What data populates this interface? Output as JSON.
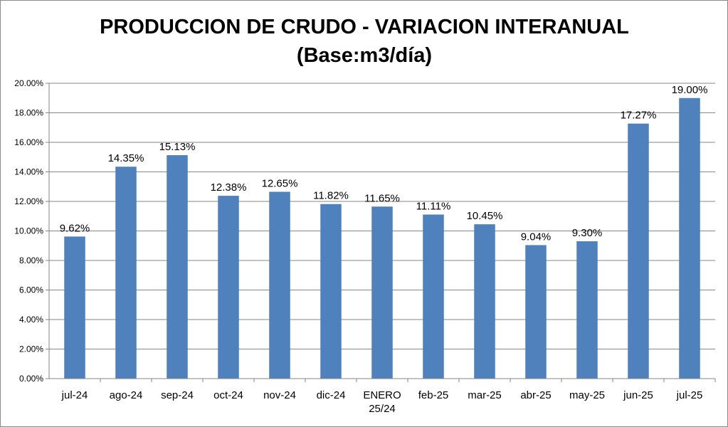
{
  "chart_data": {
    "type": "bar",
    "title": "PRODUCCION DE CRUDO - VARIACION INTERANUAL",
    "subtitle": "(Base:m3/día)",
    "categories": [
      "jul-24",
      "ago-24",
      "sep-24",
      "oct-24",
      "nov-24",
      "dic-24",
      [
        "ENERO",
        "25/24"
      ],
      "feb-25",
      "mar-25",
      "abr-25",
      "may-25",
      "jun-25",
      "jul-25"
    ],
    "values": [
      9.62,
      14.35,
      15.13,
      12.38,
      12.65,
      11.82,
      11.65,
      11.11,
      10.45,
      9.04,
      9.3,
      17.27,
      19.0
    ],
    "data_labels": [
      "9.62%",
      "14.35%",
      "15.13%",
      "12.38%",
      "12.65%",
      "11.82%",
      "11.65%",
      "11.11%",
      "10.45%",
      "9.04%",
      "9.30%",
      "17.27%",
      "19.00%"
    ],
    "y_ticks": [
      "0.00%",
      "2.00%",
      "4.00%",
      "6.00%",
      "8.00%",
      "10.00%",
      "12.00%",
      "14.00%",
      "16.00%",
      "18.00%",
      "20.00%"
    ],
    "ylim": [
      0,
      20
    ],
    "grid": true,
    "legend": "none",
    "xlabel": "",
    "ylabel": "",
    "colors": {
      "bar": "#4f81bd",
      "grid": "#868686",
      "axis": "#868686"
    }
  }
}
